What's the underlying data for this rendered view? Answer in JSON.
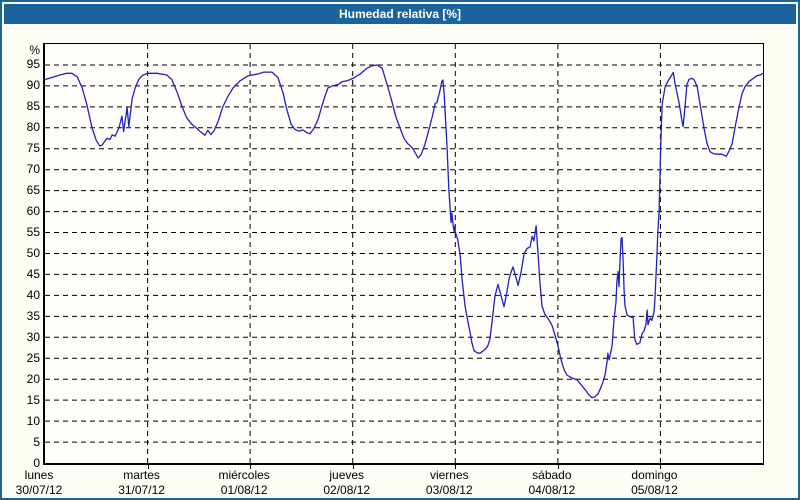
{
  "title": "Humedad relativa [%]",
  "colors": {
    "frame": "#1a649b",
    "titlebar": "#1a649b",
    "title_text": "#ffffff",
    "grid": "#000000",
    "line": "#2121bb",
    "background": "#fdfdf6"
  },
  "chart_data": {
    "type": "line",
    "title": "Humedad relativa [%]",
    "ylabel": "%",
    "ylim": [
      0,
      100
    ],
    "ytick_step": 5,
    "ytick_labels": [
      0,
      5,
      10,
      15,
      20,
      25,
      30,
      35,
      40,
      45,
      50,
      55,
      60,
      65,
      70,
      75,
      80,
      85,
      90,
      95
    ],
    "x_unit": "hours",
    "xlim": [
      0,
      168
    ],
    "grid": "dashed",
    "legend_position": "none",
    "days": [
      {
        "name": "lunes",
        "date": "30/07/12"
      },
      {
        "name": "martes",
        "date": "31/07/12"
      },
      {
        "name": "miércoles",
        "date": "01/08/12"
      },
      {
        "name": "jueves",
        "date": "02/08/12"
      },
      {
        "name": "viernes",
        "date": "03/08/12"
      },
      {
        "name": "sábado",
        "date": "04/08/12"
      },
      {
        "name": "domingo",
        "date": "05/08/12"
      }
    ],
    "series": [
      {
        "name": "Humedad relativa",
        "color": "#2121bb",
        "points": [
          [
            0,
            91.5
          ],
          [
            1.6,
            92
          ],
          [
            3.5,
            92.6
          ],
          [
            5.1,
            93
          ],
          [
            6.3,
            93
          ],
          [
            7.5,
            92.2
          ],
          [
            8.7,
            89.5
          ],
          [
            9.8,
            85.5
          ],
          [
            11,
            80
          ],
          [
            12,
            77
          ],
          [
            12.8,
            75.7
          ],
          [
            13.3,
            75.8
          ],
          [
            14,
            76.8
          ],
          [
            14.5,
            77.5
          ],
          [
            15.2,
            77.2
          ],
          [
            15.7,
            78.3
          ],
          [
            16.4,
            78
          ],
          [
            17.3,
            79.9
          ],
          [
            18,
            82.8
          ],
          [
            18.4,
            79.1
          ],
          [
            19.2,
            84.9
          ],
          [
            19.6,
            80.3
          ],
          [
            20.4,
            87
          ],
          [
            21.1,
            89.5
          ],
          [
            21.9,
            91.5
          ],
          [
            22.8,
            92.5
          ],
          [
            24,
            93
          ],
          [
            26.2,
            93
          ],
          [
            28.5,
            92.6
          ],
          [
            29.7,
            91.5
          ],
          [
            30.9,
            88.5
          ],
          [
            32.1,
            85
          ],
          [
            33.2,
            82.3
          ],
          [
            34.4,
            80.8
          ],
          [
            35.6,
            79.8
          ],
          [
            36.7,
            78.8
          ],
          [
            37.4,
            78.2
          ],
          [
            38.1,
            79.4
          ],
          [
            38.8,
            78.4
          ],
          [
            39.5,
            79.2
          ],
          [
            40.5,
            81.5
          ],
          [
            41.6,
            85
          ],
          [
            42.8,
            87.5
          ],
          [
            44,
            89.5
          ],
          [
            45.6,
            91.2
          ],
          [
            47.3,
            92.3
          ],
          [
            48,
            92.5
          ],
          [
            49.6,
            92.8
          ],
          [
            51.2,
            93.3
          ],
          [
            53.1,
            93.3
          ],
          [
            54.5,
            92
          ],
          [
            55.7,
            88.3
          ],
          [
            56.6,
            84.3
          ],
          [
            57.6,
            80.8
          ],
          [
            58.5,
            79.6
          ],
          [
            59.4,
            79.2
          ],
          [
            60.4,
            79.5
          ],
          [
            61.3,
            78.8
          ],
          [
            62,
            78.6
          ],
          [
            62.9,
            79.8
          ],
          [
            63.9,
            82
          ],
          [
            64.8,
            85.2
          ],
          [
            65.5,
            87.5
          ],
          [
            66.2,
            89.5
          ],
          [
            67.2,
            90
          ],
          [
            68.6,
            90.3
          ],
          [
            69.5,
            91
          ],
          [
            70.9,
            91.3
          ],
          [
            72,
            91.8
          ],
          [
            73.7,
            92.8
          ],
          [
            75.3,
            94.2
          ],
          [
            76.5,
            94.8
          ],
          [
            77.7,
            95
          ],
          [
            78.9,
            94.2
          ],
          [
            80,
            90.5
          ],
          [
            81.2,
            86.2
          ],
          [
            82.1,
            82.6
          ],
          [
            83.1,
            79.8
          ],
          [
            84,
            77.5
          ],
          [
            84.9,
            76.2
          ],
          [
            85.9,
            75.3
          ],
          [
            86.6,
            74.1
          ],
          [
            87.3,
            72.8
          ],
          [
            88,
            73.6
          ],
          [
            88.9,
            76
          ],
          [
            89.9,
            79.8
          ],
          [
            90.6,
            82.6
          ],
          [
            91.3,
            85.8
          ],
          [
            91.7,
            86
          ],
          [
            92.4,
            88.8
          ],
          [
            92.9,
            91.2
          ],
          [
            93.1,
            91.4
          ],
          [
            93.4,
            88
          ],
          [
            93.6,
            84.2
          ],
          [
            93.8,
            80.5
          ],
          [
            94.1,
            74.6
          ],
          [
            94.3,
            70
          ],
          [
            94.5,
            65.1
          ],
          [
            94.8,
            60.5
          ],
          [
            95,
            57.4
          ],
          [
            95.2,
            59.6
          ],
          [
            95.5,
            56.8
          ],
          [
            95.7,
            55.3
          ],
          [
            95.9,
            56.6
          ],
          [
            96,
            55.2
          ],
          [
            96.6,
            53.2
          ],
          [
            97.1,
            50
          ],
          [
            97.6,
            43.8
          ],
          [
            98.3,
            37.4
          ],
          [
            99,
            33.5
          ],
          [
            99.5,
            31
          ],
          [
            99.9,
            28.6
          ],
          [
            100.4,
            26.8
          ],
          [
            101.1,
            26.3
          ],
          [
            101.8,
            26.2
          ],
          [
            102.7,
            26.9
          ],
          [
            103.4,
            27.6
          ],
          [
            103.7,
            28.2
          ],
          [
            104.1,
            29.6
          ],
          [
            104.6,
            33.6
          ],
          [
            105.3,
            39.9
          ],
          [
            106,
            42.6
          ],
          [
            106.7,
            40
          ],
          [
            107.4,
            37.3
          ],
          [
            108.1,
            41
          ],
          [
            108.6,
            44
          ],
          [
            109,
            45.4
          ],
          [
            109.5,
            46.8
          ],
          [
            110,
            45
          ],
          [
            110.7,
            42.4
          ],
          [
            111.4,
            45.6
          ],
          [
            112.1,
            50
          ],
          [
            112.8,
            51.2
          ],
          [
            113.5,
            51.6
          ],
          [
            114,
            54.1
          ],
          [
            114.4,
            53
          ],
          [
            114.9,
            56.6
          ],
          [
            115.4,
            49.4
          ],
          [
            115.8,
            43.2
          ],
          [
            116.3,
            37.5
          ],
          [
            117,
            35.4
          ],
          [
            117.7,
            34.5
          ],
          [
            118.6,
            32.9
          ],
          [
            119.3,
            30.6
          ],
          [
            120,
            28
          ],
          [
            120.7,
            24.9
          ],
          [
            121.4,
            22.4
          ],
          [
            122.1,
            21
          ],
          [
            122.9,
            20.5
          ],
          [
            123.6,
            20.2
          ],
          [
            124.5,
            19.8
          ],
          [
            125.2,
            19
          ],
          [
            125.9,
            18.1
          ],
          [
            126.6,
            17.2
          ],
          [
            127.3,
            16.2
          ],
          [
            128,
            15.6
          ],
          [
            128.7,
            15.8
          ],
          [
            129.4,
            16.5
          ],
          [
            130.1,
            18.1
          ],
          [
            130.6,
            19.5
          ],
          [
            131,
            20.9
          ],
          [
            131.5,
            24
          ],
          [
            131.7,
            26.2
          ],
          [
            132,
            24.6
          ],
          [
            132.2,
            25.5
          ],
          [
            132.7,
            28.1
          ],
          [
            133.1,
            33.5
          ],
          [
            133.6,
            38.5
          ],
          [
            133.8,
            43
          ],
          [
            134.1,
            45.7
          ],
          [
            134.3,
            42.1
          ],
          [
            134.5,
            47
          ],
          [
            134.8,
            53.5
          ],
          [
            135,
            53.8
          ],
          [
            135.3,
            47.9
          ],
          [
            135.5,
            41
          ],
          [
            135.7,
            37.5
          ],
          [
            136.2,
            35.3
          ],
          [
            136.9,
            34.9
          ],
          [
            137.6,
            34.7
          ],
          [
            138,
            29.5
          ],
          [
            138.5,
            28.3
          ],
          [
            139.2,
            28.7
          ],
          [
            139.7,
            30.9
          ],
          [
            140.2,
            31.6
          ],
          [
            140.6,
            33
          ],
          [
            140.9,
            36.5
          ],
          [
            141.1,
            33
          ],
          [
            141.6,
            34.6
          ],
          [
            142,
            34
          ],
          [
            142.5,
            36
          ],
          [
            142.7,
            39
          ],
          [
            143.2,
            49.8
          ],
          [
            143.4,
            55.5
          ],
          [
            143.7,
            60
          ],
          [
            143.9,
            68.4
          ],
          [
            144.1,
            77
          ],
          [
            144.4,
            85.5
          ],
          [
            145.1,
            89.8
          ],
          [
            145.8,
            91.2
          ],
          [
            146.7,
            92.7
          ],
          [
            147,
            93.2
          ],
          [
            147.4,
            90.6
          ],
          [
            148.4,
            85.8
          ],
          [
            149.1,
            81.3
          ],
          [
            149.3,
            80.3
          ],
          [
            149.8,
            85.4
          ],
          [
            150.2,
            90.3
          ],
          [
            150.7,
            91.6
          ],
          [
            151.4,
            91.8
          ],
          [
            151.9,
            91.4
          ],
          [
            152.6,
            89.8
          ],
          [
            153.3,
            85.4
          ],
          [
            153.8,
            82.4
          ],
          [
            154.2,
            79.9
          ],
          [
            154.9,
            76.3
          ],
          [
            155.6,
            74.3
          ],
          [
            156.5,
            73.8
          ],
          [
            157.5,
            73.7
          ],
          [
            158.4,
            73.7
          ],
          [
            159.4,
            73.2
          ],
          [
            160.1,
            74.5
          ],
          [
            160.8,
            76.2
          ],
          [
            161.5,
            80.3
          ],
          [
            162.4,
            85
          ],
          [
            163.1,
            88.2
          ],
          [
            163.8,
            89.8
          ],
          [
            164.7,
            91
          ],
          [
            165.7,
            91.8
          ],
          [
            166.6,
            92.4
          ],
          [
            167.3,
            92.6
          ],
          [
            168,
            93
          ]
        ]
      }
    ]
  }
}
